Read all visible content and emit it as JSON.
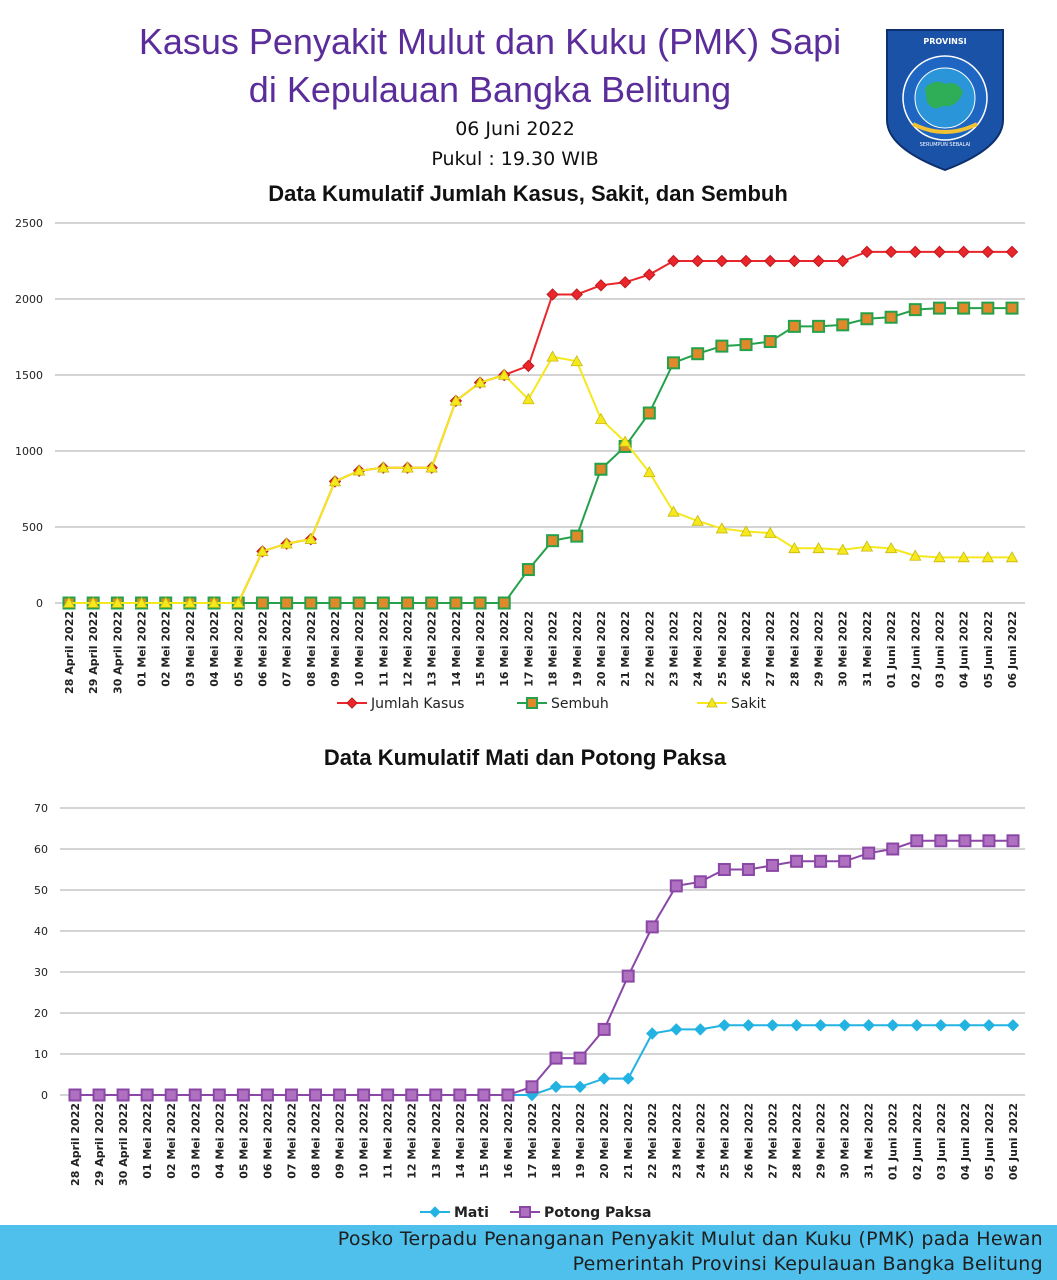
{
  "header": {
    "title_line1": "Kasus Penyakit Mulut dan Kuku (PMK) Sapi",
    "title_line2": "di Kepulauan Bangka Belitung",
    "date": "06 Juni 2022",
    "time": "Pukul : 19.30 WIB"
  },
  "logo": {
    "top_text": "PROVINSI",
    "ring_text": "KEPULAUAN BANGKA BELITUNG",
    "motto": "SERUMPUN SEBALAI"
  },
  "dates": [
    "28 April 2022",
    "29 April 2022",
    "30 April 2022",
    "01 Mei 2022",
    "02 Mei 2022",
    "03 Mei 2022",
    "04 Mei 2022",
    "05 Mei 2022",
    "06 Mei 2022",
    "07 Mei 2022",
    "08 Mei 2022",
    "09 Mei 2022",
    "10 Mei 2022",
    "11 Mei 2022",
    "12 Mei 2022",
    "13 Mei 2022",
    "14 Mei 2022",
    "15 Mei 2022",
    "16 Mei 2022",
    "17 Mei 2022",
    "18 Mei 2022",
    "19 Mei 2022",
    "20 Mei 2022",
    "21 Mei 2022",
    "22 Mei 2022",
    "23 Mei 2022",
    "24 Mei 2022",
    "25 Mei 2022",
    "26 Mei 2022",
    "27 Mei 2022",
    "28 Mei 2022",
    "29 Mei 2022",
    "30 Mei 2022",
    "31 Mei 2022",
    "01 Juni 2022",
    "02 Juni 2022",
    "03 Juni 2022",
    "04 Juni 2022",
    "05 Juni 2022",
    "06 Juni 2022"
  ],
  "chart_data": [
    {
      "type": "line",
      "title": "Data Kumulatif Jumlah Kasus, Sakit, dan Sembuh",
      "xlabel": "",
      "ylabel": "",
      "ylim": [
        0,
        2500
      ],
      "yticks": [
        0,
        500,
        1000,
        1500,
        2000,
        2500
      ],
      "grid": true,
      "legend": "bottom",
      "series": [
        {
          "name": "Jumlah Kasus",
          "color": "#e8262b",
          "marker": "diamond",
          "values": [
            0,
            0,
            0,
            0,
            0,
            0,
            0,
            0,
            340,
            390,
            420,
            800,
            870,
            890,
            890,
            890,
            1330,
            1450,
            1500,
            1560,
            2030,
            2030,
            2090,
            2110,
            2160,
            2250,
            2250,
            2250,
            2250,
            2250,
            2250,
            2250,
            2250,
            2310,
            2310,
            2310,
            2310,
            2310,
            2310,
            2310
          ]
        },
        {
          "name": "Sembuh",
          "color": "#24a14a",
          "marker": "square",
          "values": [
            0,
            0,
            0,
            0,
            0,
            0,
            0,
            0,
            0,
            0,
            0,
            0,
            0,
            0,
            0,
            0,
            0,
            0,
            0,
            220,
            410,
            440,
            880,
            1030,
            1250,
            1580,
            1640,
            1690,
            1700,
            1720,
            1820,
            1820,
            1830,
            1870,
            1880,
            1930,
            1940,
            1940,
            1940,
            1940
          ]
        },
        {
          "name": "Sakit",
          "color": "#f5e81c",
          "marker": "triangle",
          "values": [
            0,
            0,
            0,
            0,
            0,
            0,
            0,
            0,
            340,
            390,
            420,
            800,
            870,
            890,
            890,
            890,
            1330,
            1450,
            1500,
            1340,
            1620,
            1590,
            1210,
            1060,
            860,
            600,
            540,
            490,
            470,
            460,
            360,
            360,
            350,
            370,
            360,
            310,
            300,
            300,
            300,
            300
          ]
        }
      ]
    },
    {
      "type": "line",
      "title": "Data Kumulatif Mati dan Potong Paksa",
      "xlabel": "",
      "ylabel": "",
      "ylim": [
        0,
        70
      ],
      "yticks": [
        0,
        10,
        20,
        30,
        40,
        50,
        60,
        70
      ],
      "grid": true,
      "legend": "bottom",
      "series": [
        {
          "name": "Mati",
          "color": "#23b3e2",
          "marker": "diamond",
          "values": [
            0,
            0,
            0,
            0,
            0,
            0,
            0,
            0,
            0,
            0,
            0,
            0,
            0,
            0,
            0,
            0,
            0,
            0,
            0,
            0,
            2,
            2,
            4,
            4,
            15,
            16,
            16,
            17,
            17,
            17,
            17,
            17,
            17,
            17,
            17,
            17,
            17,
            17,
            17,
            17
          ]
        },
        {
          "name": "Potong Paksa",
          "color": "#8a47a6",
          "marker": "square",
          "values": [
            0,
            0,
            0,
            0,
            0,
            0,
            0,
            0,
            0,
            0,
            0,
            0,
            0,
            0,
            0,
            0,
            0,
            0,
            0,
            2,
            9,
            9,
            16,
            29,
            41,
            51,
            52,
            55,
            55,
            56,
            57,
            57,
            57,
            59,
            60,
            62,
            62,
            62,
            62,
            62
          ]
        }
      ]
    }
  ],
  "footer": {
    "line1": "Posko Terpadu Penanganan Penyakit Mulut dan Kuku (PMK) pada Hewan",
    "line2": "Pemerintah Provinsi Kepulauan Bangka Belitung"
  }
}
